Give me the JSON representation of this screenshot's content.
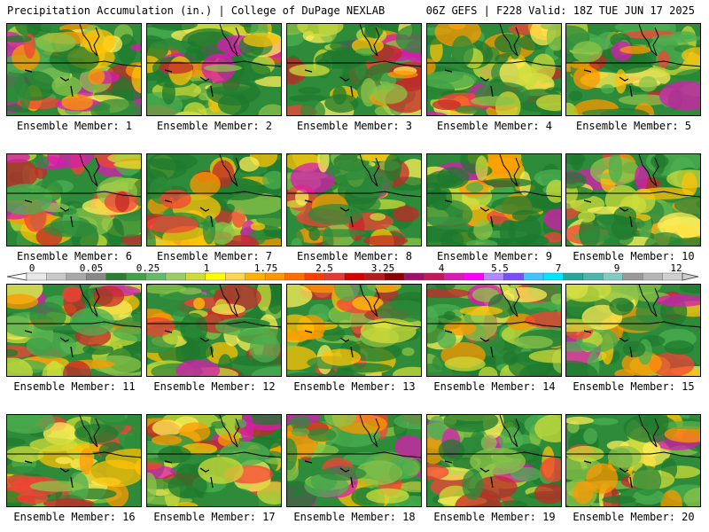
{
  "header": {
    "title": "Precipitation Accumulation (in.) | College of DuPage NEXLAB",
    "valid": "06Z GEFS | F228 Valid: 18Z TUE JUN 17 2025"
  },
  "members": [
    "Ensemble Member: 1",
    "Ensemble Member: 2",
    "Ensemble Member: 3",
    "Ensemble Member: 4",
    "Ensemble Member: 5",
    "Ensemble Member: 6",
    "Ensemble Member: 7",
    "Ensemble Member: 8",
    "Ensemble Member: 9",
    "Ensemble Member: 10",
    "Ensemble Member: 11",
    "Ensemble Member: 12",
    "Ensemble Member: 13",
    "Ensemble Member: 14",
    "Ensemble Member: 15",
    "Ensemble Member: 16",
    "Ensemble Member: 17",
    "Ensemble Member: 18",
    "Ensemble Member: 19",
    "Ensemble Member: 20"
  ],
  "colorbar": {
    "tick_labels": [
      "0",
      "0.05",
      "0.25",
      "1",
      "1.75",
      "2.5",
      "3.25",
      "4",
      "5.5",
      "7",
      "9",
      "12"
    ],
    "colors": [
      "#e8e8e8",
      "#c8c8c8",
      "#a8a8a8",
      "#888888",
      "#2e7d32",
      "#43a047",
      "#66bb6a",
      "#9ccc65",
      "#cddc39",
      "#ffff00",
      "#ffd54f",
      "#ffb300",
      "#ff9800",
      "#ff6d00",
      "#ff3d00",
      "#e53935",
      "#d50000",
      "#b71c1c",
      "#8b0000",
      "#a0106a",
      "#c2185b",
      "#d81bb0",
      "#ff00ff",
      "#b388ff",
      "#7c4dff",
      "#40c4ff",
      "#00e5ff",
      "#26a69a",
      "#4db6ac",
      "#80cbc4",
      "#999999",
      "#b5b5b5",
      "#cfcfcf"
    ]
  }
}
